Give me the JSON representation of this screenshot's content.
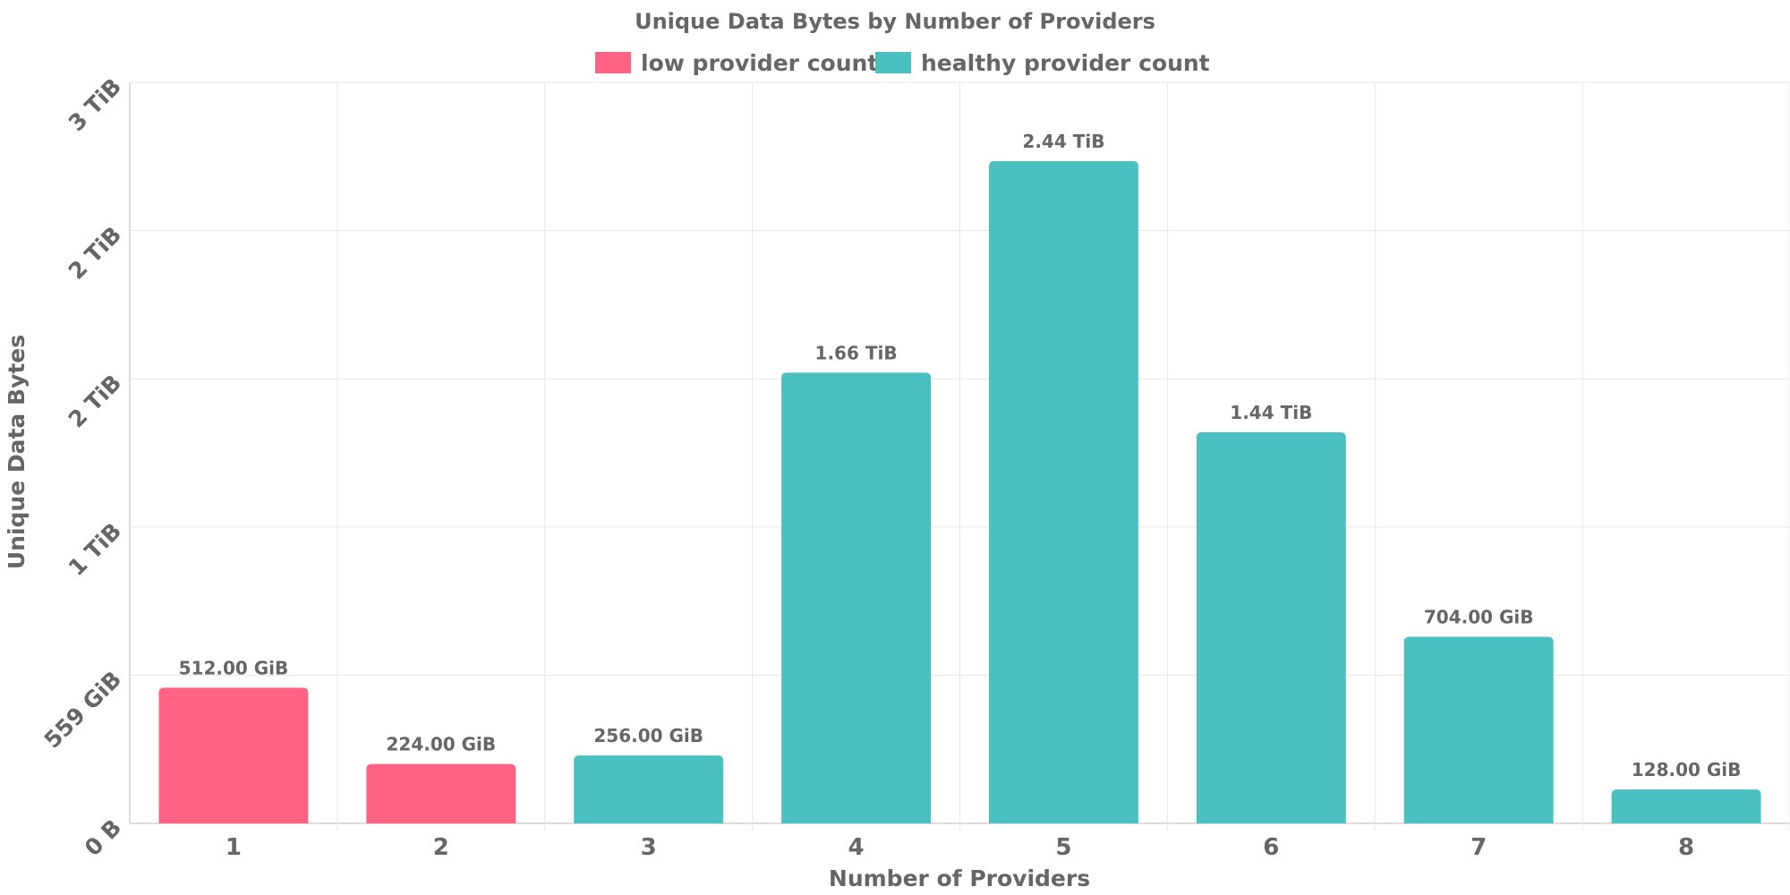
{
  "chart_data": {
    "type": "bar",
    "title": "Unique Data Bytes by Number of Providers",
    "xlabel": "Number of Providers",
    "ylabel": "Unique Data Bytes",
    "categories": [
      "1",
      "2",
      "3",
      "4",
      "5",
      "6",
      "7",
      "8"
    ],
    "values_gib": [
      512,
      224,
      256,
      1700,
      2498,
      1475,
      704,
      128
    ],
    "data_labels": [
      "512.00 GiB",
      "224.00 GiB",
      "256.00 GiB",
      "1.66 TiB",
      "2.44 TiB",
      "1.44 TiB",
      "704.00 GiB",
      "128.00 GiB"
    ],
    "bar_series": [
      "low provider count",
      "low provider count",
      "healthy provider count",
      "healthy provider count",
      "healthy provider count",
      "healthy provider count",
      "healthy provider count",
      "healthy provider count"
    ],
    "legend": [
      {
        "name": "low provider count",
        "color": "#ff6384"
      },
      {
        "name": "healthy provider count",
        "color": "#4bc0c0"
      }
    ],
    "legend_position": "top",
    "ylim_gib": [
      0,
      2795
    ],
    "y_ticks": [
      {
        "value_gib": 0,
        "label": "0 B"
      },
      {
        "value_gib": 559,
        "label": "559 GiB"
      },
      {
        "value_gib": 1118,
        "label": "1 TiB"
      },
      {
        "value_gib": 1677,
        "label": "2 TiB"
      },
      {
        "value_gib": 2236,
        "label": "2 TiB"
      },
      {
        "value_gib": 2795,
        "label": "3 TiB"
      }
    ],
    "grid": true
  }
}
